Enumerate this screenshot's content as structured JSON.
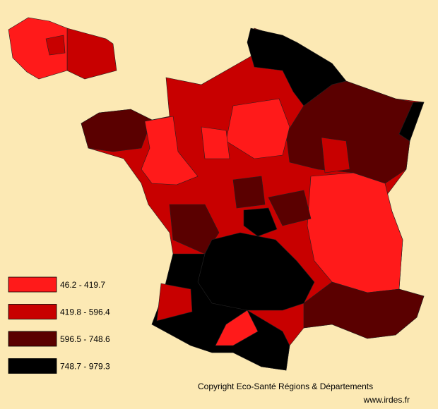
{
  "legend": {
    "items": [
      {
        "label": "46.2 - 419.7",
        "color": "#ff1a1a"
      },
      {
        "label": "419.8 - 596.4",
        "color": "#c80000"
      },
      {
        "label": "596.5 - 748.6",
        "color": "#5a0000"
      },
      {
        "label": "748.7 - 979.3",
        "color": "#000000"
      }
    ]
  },
  "footer": {
    "copyright": "Copyright Eco-Santé Régions & Départements",
    "url": "www.irdes.fr"
  }
}
